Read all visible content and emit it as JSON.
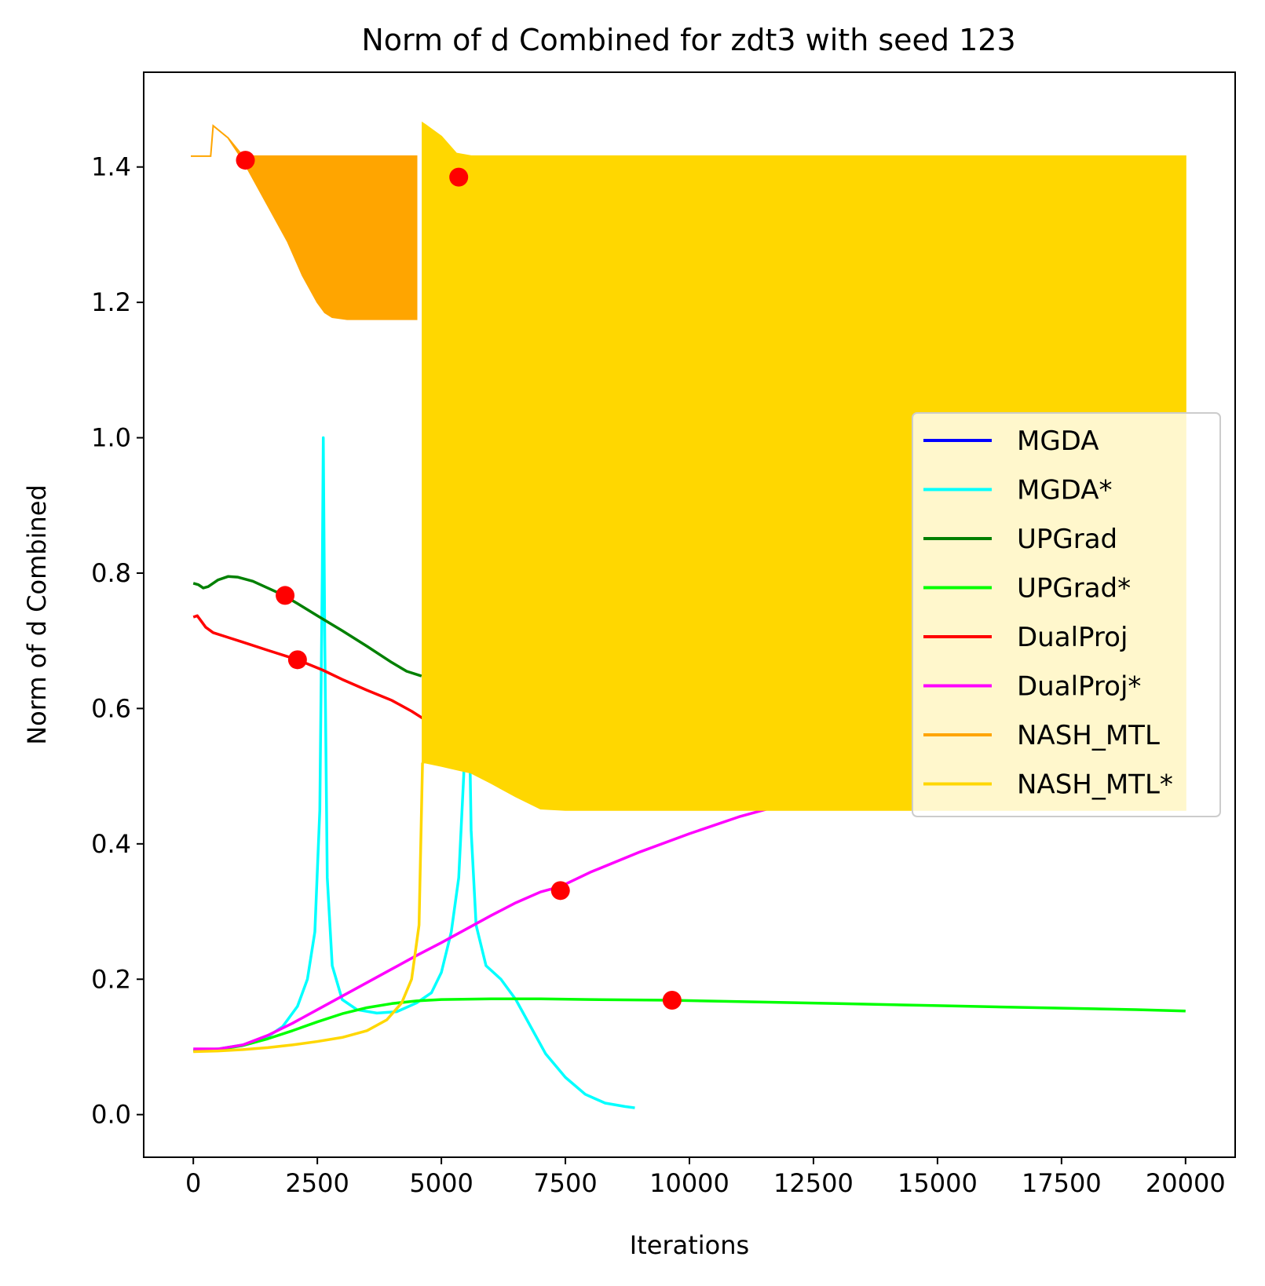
{
  "chart_data": {
    "type": "line",
    "title": "Norm of d Combined for zdt3 with seed 123",
    "xlabel": "Iterations",
    "ylabel": "Norm of d Combined",
    "xlim": [
      -1000,
      21000
    ],
    "ylim": [
      -0.063,
      1.54
    ],
    "xticks": [
      0,
      2500,
      5000,
      7500,
      10000,
      12500,
      15000,
      17500,
      20000
    ],
    "yticks": [
      0.0,
      0.2,
      0.4,
      0.6,
      0.8,
      1.0,
      1.2,
      1.4
    ],
    "xtick_labels": [
      "0",
      "2500",
      "5000",
      "7500",
      "10000",
      "12500",
      "15000",
      "17500",
      "20000"
    ],
    "ytick_labels": [
      "0.0",
      "0.2",
      "0.4",
      "0.6",
      "0.8",
      "1.0",
      "1.2",
      "1.4"
    ],
    "grid": false,
    "legend_position": "center-right",
    "legend": [
      "MGDA",
      "MGDA*",
      "UPGrad",
      "UPGrad*",
      "DualProj",
      "DualProj*",
      "NASH_MTL",
      "NASH_MTL*"
    ],
    "series": [
      {
        "name": "MGDA",
        "color": "#0000ff",
        "style": "line",
        "x": [],
        "y": []
      },
      {
        "name": "MGDA*",
        "color": "#00ffff",
        "style": "line",
        "x": [
          0,
          500,
          1000,
          1500,
          1800,
          2100,
          2300,
          2450,
          2550,
          2600,
          2620,
          2650,
          2700,
          2800,
          3000,
          3300,
          3700,
          4100,
          4500,
          4800,
          5000,
          5200,
          5350,
          5450,
          5500,
          5530,
          5560,
          5600,
          5700,
          5900,
          6200,
          6500,
          6800,
          7100,
          7500,
          7900,
          8300,
          8700,
          8900
        ],
        "y": [
          0.095,
          0.097,
          0.103,
          0.115,
          0.13,
          0.16,
          0.2,
          0.27,
          0.45,
          0.8,
          1.0,
          0.7,
          0.35,
          0.22,
          0.17,
          0.155,
          0.15,
          0.152,
          0.165,
          0.18,
          0.21,
          0.27,
          0.35,
          0.5,
          0.62,
          0.66,
          0.6,
          0.42,
          0.28,
          0.22,
          0.2,
          0.17,
          0.13,
          0.09,
          0.055,
          0.03,
          0.017,
          0.012,
          0.01
        ]
      },
      {
        "name": "UPGrad",
        "color": "#008000",
        "style": "line",
        "x": [
          0,
          100,
          200,
          300,
          500,
          700,
          900,
          1200,
          1500,
          1800,
          2100,
          2500,
          3000,
          3500,
          4000,
          4300,
          4600
        ],
        "y": [
          0.785,
          0.783,
          0.778,
          0.78,
          0.79,
          0.795,
          0.794,
          0.788,
          0.778,
          0.768,
          0.755,
          0.737,
          0.715,
          0.692,
          0.668,
          0.655,
          0.648
        ]
      },
      {
        "name": "UPGrad*",
        "color": "#00ff00",
        "style": "line",
        "x": [
          0,
          500,
          1000,
          1500,
          2000,
          2500,
          3000,
          3500,
          4000,
          4500,
          5000,
          6000,
          7000,
          8000,
          9600,
          11000,
          13000,
          15000,
          17000,
          19000,
          20000
        ],
        "y": [
          0.094,
          0.096,
          0.102,
          0.112,
          0.124,
          0.137,
          0.149,
          0.158,
          0.164,
          0.168,
          0.17,
          0.171,
          0.171,
          0.17,
          0.169,
          0.167,
          0.164,
          0.161,
          0.158,
          0.155,
          0.153
        ]
      },
      {
        "name": "DualProj",
        "color": "#ff0000",
        "style": "line",
        "x": [
          0,
          80,
          150,
          250,
          400,
          700,
          1000,
          1500,
          2100,
          2600,
          3000,
          3500,
          4000,
          4400,
          4700
        ],
        "y": [
          0.735,
          0.737,
          0.73,
          0.72,
          0.712,
          0.705,
          0.698,
          0.686,
          0.672,
          0.657,
          0.643,
          0.627,
          0.612,
          0.596,
          0.582
        ]
      },
      {
        "name": "DualProj*",
        "color": "#ff00ff",
        "style": "line",
        "x": [
          0,
          500,
          1000,
          1500,
          2000,
          2500,
          3000,
          3500,
          4000,
          4500,
          5000,
          5500,
          6000,
          6500,
          7000,
          7400,
          8000,
          9000,
          10000,
          11000,
          12000
        ],
        "y": [
          0.097,
          0.097,
          0.103,
          0.117,
          0.135,
          0.155,
          0.175,
          0.195,
          0.215,
          0.235,
          0.254,
          0.274,
          0.294,
          0.313,
          0.329,
          0.337,
          0.358,
          0.388,
          0.415,
          0.44,
          0.46
        ]
      },
      {
        "name": "NASH_MTL",
        "color": "#ffa500",
        "style": "band",
        "x": [
          -50,
          350,
          400,
          700,
          1000,
          1300,
          1600,
          1900,
          2200,
          2500,
          2650,
          2800,
          3100,
          4500
        ],
        "y_upper": [
          1.416,
          1.416,
          1.461,
          1.443,
          1.416,
          1.416,
          1.416,
          1.416,
          1.416,
          1.416,
          1.416,
          1.416,
          1.416,
          1.416
        ],
        "y_lower": [
          1.416,
          1.416,
          1.461,
          1.443,
          1.41,
          1.37,
          1.33,
          1.29,
          1.24,
          1.2,
          1.185,
          1.178,
          1.175,
          1.175
        ]
      },
      {
        "name": "NASH_MTL*",
        "color": "#ffd700",
        "style": "band",
        "x": [
          4620,
          4680,
          5000,
          5300,
          5600,
          6000,
          6500,
          7000,
          7500,
          12000,
          16000,
          19800,
          20000
        ],
        "y_upper": [
          1.465,
          1.462,
          1.445,
          1.42,
          1.416,
          1.416,
          1.416,
          1.416,
          1.416,
          1.416,
          1.416,
          1.416,
          1.416
        ],
        "y_lower": [
          0.52,
          0.52,
          0.515,
          0.51,
          0.505,
          0.49,
          0.47,
          0.452,
          0.45,
          0.45,
          0.45,
          0.45,
          0.45
        ],
        "lead_in": {
          "x": [
            0,
            500,
            1000,
            1500,
            2000,
            2500,
            3000,
            3500,
            3900,
            4200,
            4400,
            4550,
            4620
          ],
          "y": [
            0.093,
            0.094,
            0.096,
            0.099,
            0.103,
            0.108,
            0.114,
            0.124,
            0.14,
            0.165,
            0.2,
            0.28,
            0.52
          ]
        }
      }
    ],
    "markers": {
      "color": "#ff0000",
      "points": [
        {
          "x": 1050,
          "y": 1.41
        },
        {
          "x": 5350,
          "y": 1.385
        },
        {
          "x": 1850,
          "y": 0.767
        },
        {
          "x": 2100,
          "y": 0.672
        },
        {
          "x": 7400,
          "y": 0.331
        },
        {
          "x": 9650,
          "y": 0.169
        }
      ]
    }
  }
}
